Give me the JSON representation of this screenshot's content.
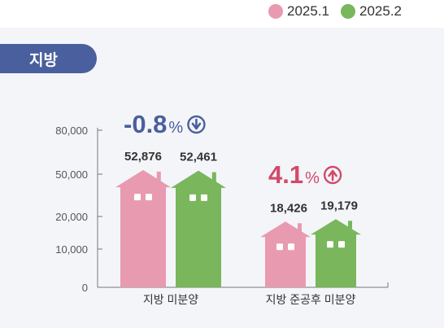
{
  "region": {
    "label": "지방"
  },
  "legend": [
    {
      "label": "2025.1",
      "color": "#e89ab0"
    },
    {
      "label": "2025.2",
      "color": "#7ab65c"
    }
  ],
  "chart_data": {
    "type": "bar",
    "categories": [
      "지방 미분양",
      "지방 준공후 미분양"
    ],
    "series": [
      {
        "name": "2025.1",
        "values": [
          52876,
          18426
        ],
        "labels": [
          "52,876",
          "18,426"
        ],
        "color": "#e89ab0"
      },
      {
        "name": "2025.2",
        "values": [
          52461,
          19179
        ],
        "labels": [
          "52,461",
          "19,179"
        ],
        "color": "#7ab65c"
      }
    ],
    "y_ticks": [
      "80,000",
      "50,000",
      "20,000",
      "10,000",
      "0"
    ],
    "changes": [
      {
        "value": "-0.8",
        "unit": "%",
        "direction": "down",
        "color": "#4a5f9d"
      },
      {
        "value": "4.1",
        "unit": "%",
        "direction": "up",
        "color": "#d14a6a"
      }
    ]
  }
}
